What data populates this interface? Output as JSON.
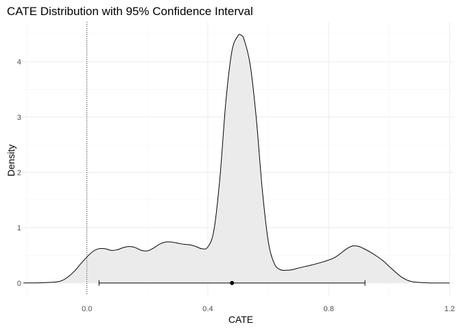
{
  "chart_data": {
    "type": "area",
    "title": "CATE Distribution with 95% Confidence Interval",
    "xlabel": "CATE",
    "ylabel": "Density",
    "xlim": [
      -0.215,
      1.215
    ],
    "ylim": [
      -0.225,
      4.72
    ],
    "x_ticks": [
      0.0,
      0.4,
      0.8,
      1.2
    ],
    "x_tick_labels": [
      "0.0",
      "0.4",
      "0.8",
      "1.2"
    ],
    "y_ticks": [
      0,
      1,
      2,
      3,
      4
    ],
    "y_tick_labels": [
      "0",
      "1",
      "2",
      "3",
      "4"
    ],
    "grid": true,
    "fill_color": "#ebebeb",
    "line_color": "#000000",
    "reference_line": {
      "x": 0.0,
      "style": "dotted"
    },
    "point_estimate": {
      "x": 0.48,
      "y": 0.0
    },
    "confidence_interval": {
      "lower": 0.04,
      "upper": 0.92,
      "y": 0.0
    },
    "series": [
      {
        "x": [
          -0.21,
          -0.15,
          -0.1,
          -0.08,
          -0.06,
          -0.04,
          -0.02,
          0.0,
          0.02,
          0.04,
          0.06,
          0.08,
          0.1,
          0.12,
          0.14,
          0.16,
          0.18,
          0.2,
          0.22,
          0.24,
          0.26,
          0.28,
          0.3,
          0.32,
          0.34,
          0.36,
          0.38,
          0.4,
          0.42,
          0.44,
          0.46,
          0.48,
          0.5,
          0.51,
          0.52,
          0.54,
          0.56,
          0.58,
          0.6,
          0.62,
          0.64,
          0.66,
          0.68,
          0.7,
          0.74,
          0.78,
          0.82,
          0.86,
          0.88,
          0.9,
          0.92,
          0.94,
          0.96,
          0.98,
          1.0,
          1.02,
          1.04,
          1.06,
          1.08,
          1.1,
          1.14,
          1.2
        ],
        "y": [
          0.0,
          0.005,
          0.02,
          0.05,
          0.12,
          0.22,
          0.35,
          0.47,
          0.57,
          0.62,
          0.62,
          0.59,
          0.6,
          0.64,
          0.66,
          0.64,
          0.59,
          0.58,
          0.63,
          0.7,
          0.74,
          0.74,
          0.72,
          0.7,
          0.69,
          0.66,
          0.62,
          0.65,
          0.95,
          1.9,
          3.3,
          4.2,
          4.47,
          4.48,
          4.4,
          3.95,
          3.0,
          1.7,
          0.75,
          0.35,
          0.24,
          0.23,
          0.24,
          0.27,
          0.32,
          0.38,
          0.46,
          0.62,
          0.67,
          0.66,
          0.61,
          0.55,
          0.48,
          0.4,
          0.3,
          0.2,
          0.11,
          0.05,
          0.02,
          0.01,
          0.0,
          0.0
        ]
      }
    ]
  }
}
